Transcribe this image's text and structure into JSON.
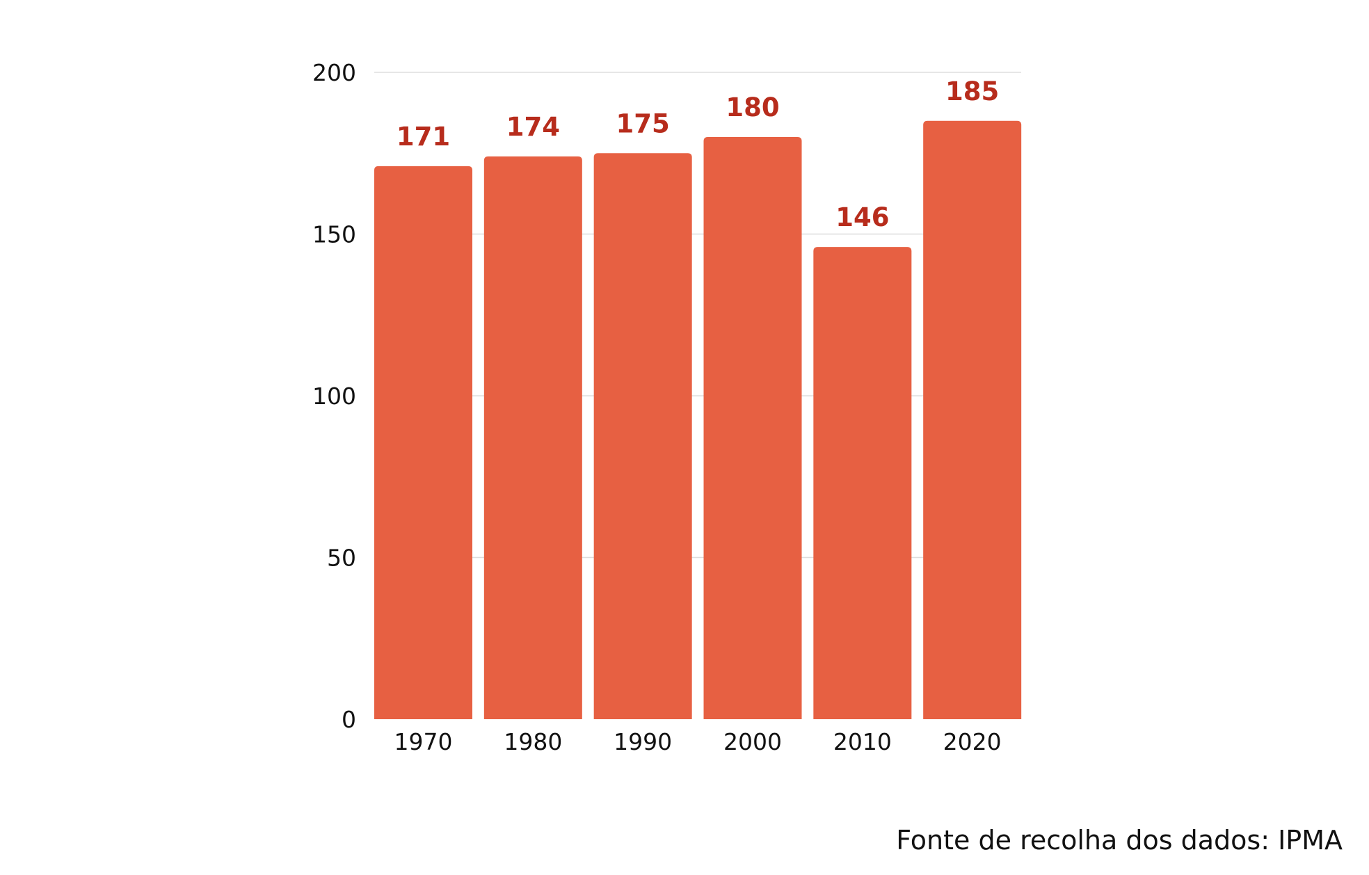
{
  "chart_data": {
    "type": "bar",
    "categories": [
      "1970",
      "1980",
      "1990",
      "2000",
      "2010",
      "2020"
    ],
    "values": [
      171,
      174,
      175,
      180,
      146,
      185
    ],
    "title": "",
    "xlabel": "",
    "ylabel": "",
    "ylim": [
      0,
      200
    ],
    "yticks": [
      "0",
      "50",
      "100",
      "150",
      "200"
    ],
    "grid": true,
    "legend": "none",
    "bar_color": "#e76042",
    "label_color": "#b72c1c",
    "grid_color": "#dddddd"
  },
  "footer": {
    "source": "Fonte de recolha dos dados: IPMA"
  }
}
